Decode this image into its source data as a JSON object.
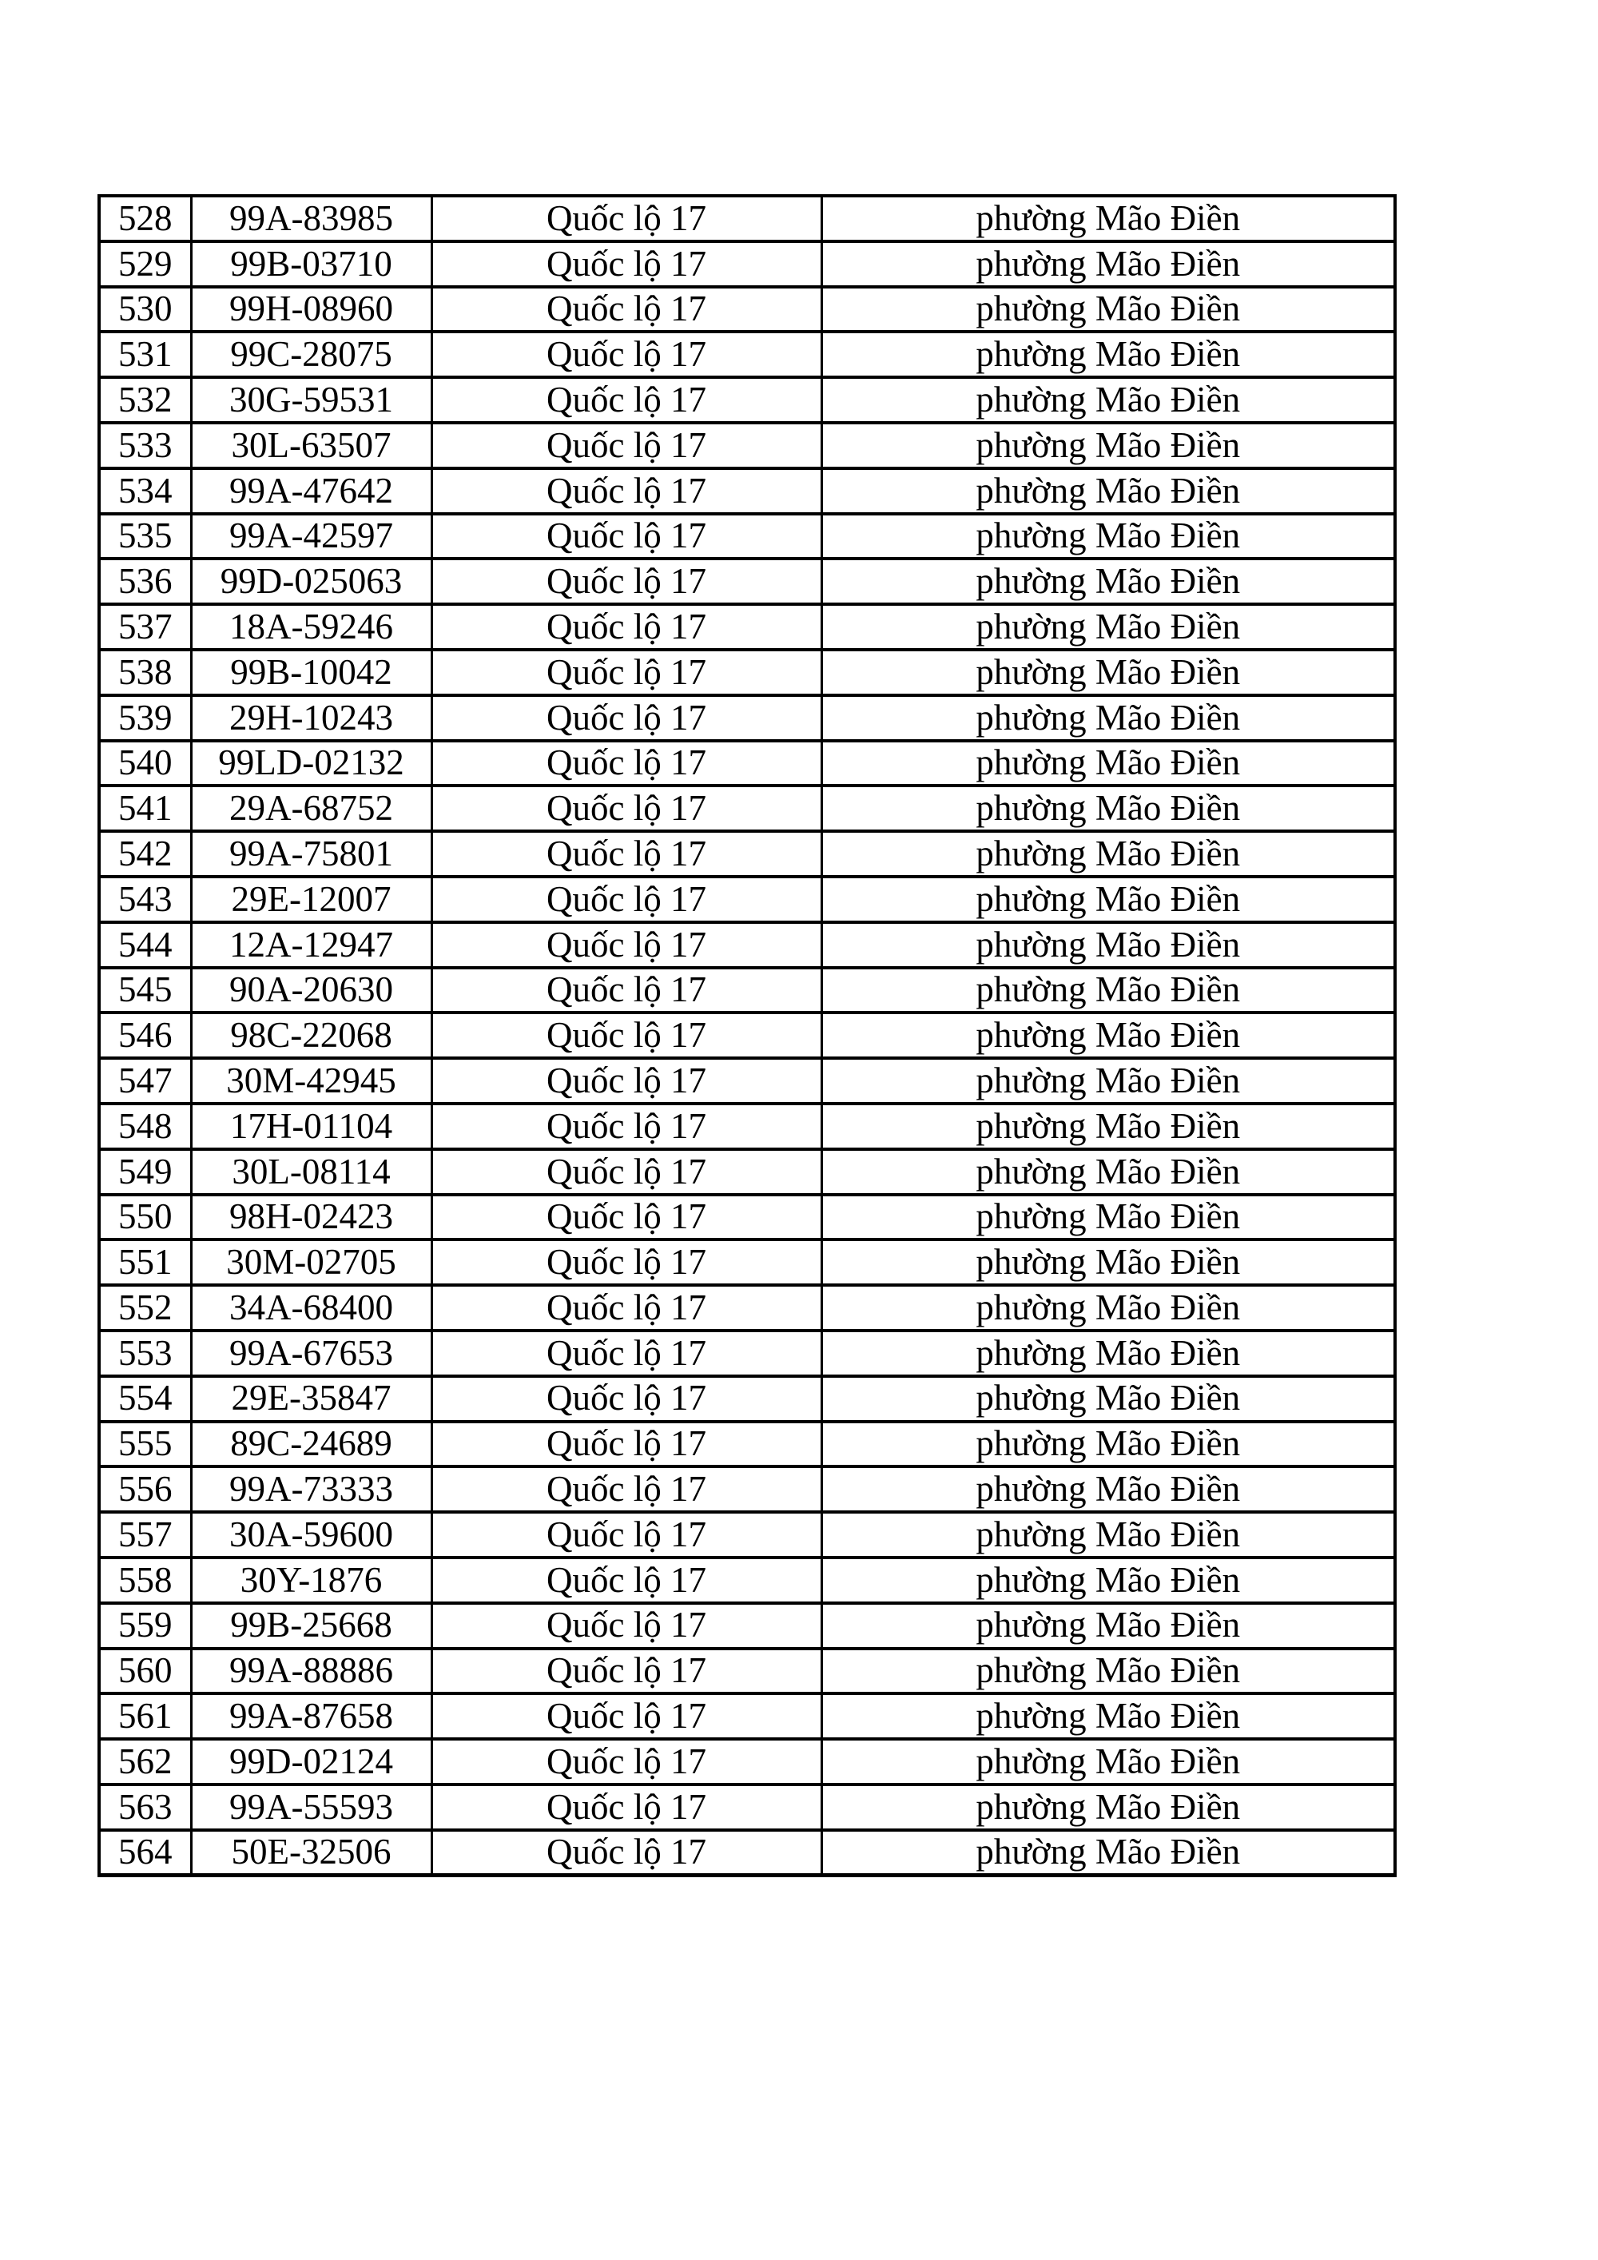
{
  "colors": {
    "background": "#ffffff",
    "text": "#000000",
    "table_border": "#000000"
  },
  "table": {
    "street_label": "Quốc lộ 17",
    "ward_label": "phường Mão Điền",
    "rows": [
      [
        "528",
        "99A-83985",
        "Quốc lộ 17",
        "phường Mão Điền"
      ],
      [
        "529",
        "99B-03710",
        "Quốc lộ 17",
        "phường Mão Điền"
      ],
      [
        "530",
        "99H-08960",
        "Quốc lộ 17",
        "phường Mão Điền"
      ],
      [
        "531",
        "99C-28075",
        "Quốc lộ 17",
        "phường Mão Điền"
      ],
      [
        "532",
        "30G-59531",
        "Quốc lộ 17",
        "phường Mão Điền"
      ],
      [
        "533",
        "30L-63507",
        "Quốc lộ 17",
        "phường Mão Điền"
      ],
      [
        "534",
        "99A-47642",
        "Quốc lộ 17",
        "phường Mão Điền"
      ],
      [
        "535",
        "99A-42597",
        "Quốc lộ 17",
        "phường Mão Điền"
      ],
      [
        "536",
        "99D-025063",
        "Quốc lộ 17",
        "phường Mão Điền"
      ],
      [
        "537",
        "18A-59246",
        "Quốc lộ 17",
        "phường Mão Điền"
      ],
      [
        "538",
        "99B-10042",
        "Quốc lộ 17",
        "phường Mão Điền"
      ],
      [
        "539",
        "29H-10243",
        "Quốc lộ 17",
        "phường Mão Điền"
      ],
      [
        "540",
        "99LD-02132",
        "Quốc lộ 17",
        "phường Mão Điền"
      ],
      [
        "541",
        "29A-68752",
        "Quốc lộ 17",
        "phường Mão Điền"
      ],
      [
        "542",
        "99A-75801",
        "Quốc lộ 17",
        "phường Mão Điền"
      ],
      [
        "543",
        "29E-12007",
        "Quốc lộ 17",
        "phường Mão Điền"
      ],
      [
        "544",
        "12A-12947",
        "Quốc lộ 17",
        "phường Mão Điền"
      ],
      [
        "545",
        "90A-20630",
        "Quốc lộ 17",
        "phường Mão Điền"
      ],
      [
        "546",
        "98C-22068",
        "Quốc lộ 17",
        "phường Mão Điền"
      ],
      [
        "547",
        "30M-42945",
        "Quốc lộ 17",
        "phường Mão Điền"
      ],
      [
        "548",
        "17H-01104",
        "Quốc lộ 17",
        "phường Mão Điền"
      ],
      [
        "549",
        "30L-08114",
        "Quốc lộ 17",
        "phường Mão Điền"
      ],
      [
        "550",
        "98H-02423",
        "Quốc lộ 17",
        "phường Mão Điền"
      ],
      [
        "551",
        "30M-02705",
        "Quốc lộ 17",
        "phường Mão Điền"
      ],
      [
        "552",
        "34A-68400",
        "Quốc lộ 17",
        "phường Mão Điền"
      ],
      [
        "553",
        "99A-67653",
        "Quốc lộ 17",
        "phường Mão Điền"
      ],
      [
        "554",
        "29E-35847",
        "Quốc lộ 17",
        "phường Mão Điền"
      ],
      [
        "555",
        "89C-24689",
        "Quốc lộ 17",
        "phường Mão Điền"
      ],
      [
        "556",
        "99A-73333",
        "Quốc lộ 17",
        "phường Mão Điền"
      ],
      [
        "557",
        "30A-59600",
        "Quốc lộ 17",
        "phường Mão Điền"
      ],
      [
        "558",
        "30Y-1876",
        "Quốc lộ 17",
        "phường Mão Điền"
      ],
      [
        "559",
        "99B-25668",
        "Quốc lộ 17",
        "phường Mão Điền"
      ],
      [
        "560",
        "99A-88886",
        "Quốc lộ 17",
        "phường Mão Điền"
      ],
      [
        "561",
        "99A-87658",
        "Quốc lộ 17",
        "phường Mão Điền"
      ],
      [
        "562",
        "99D-02124",
        "Quốc lộ 17",
        "phường Mão Điền"
      ],
      [
        "563",
        "99A-55593",
        "Quốc lộ 17",
        "phường Mão Điền"
      ],
      [
        "564",
        "50E-32506",
        "Quốc lộ 17",
        "phường Mão Điền"
      ]
    ]
  }
}
